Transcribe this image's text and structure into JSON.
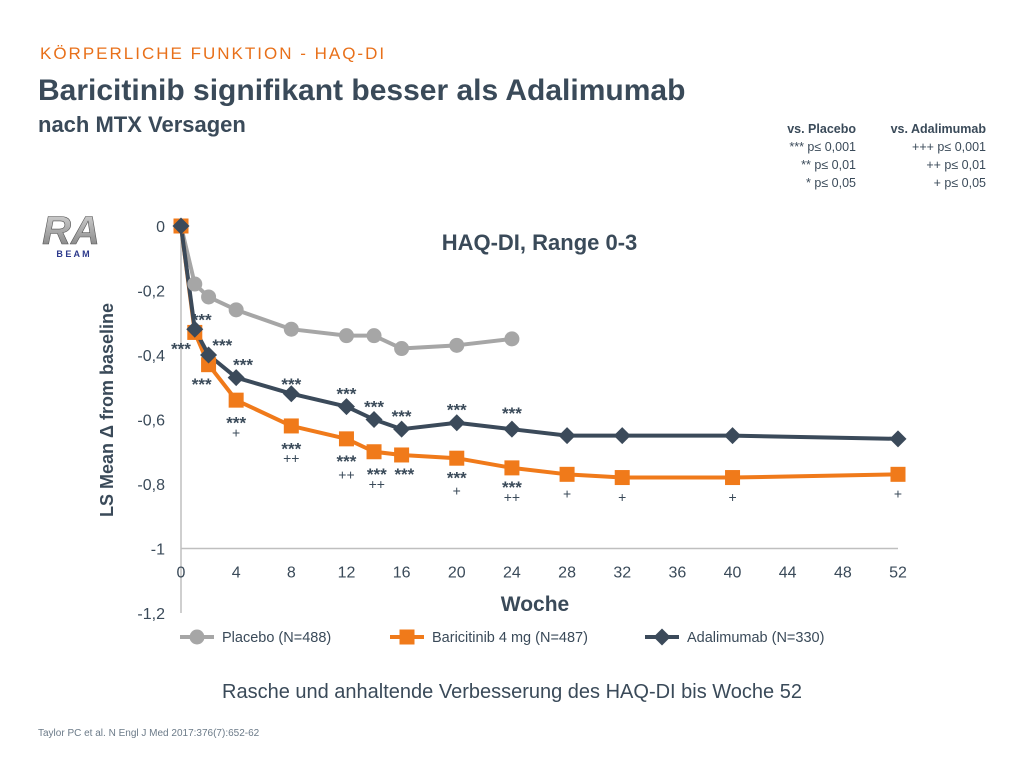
{
  "header": {
    "overline": "KÖRPERLICHE FUNKTION - HAQ-DI",
    "title": "Baricitinib signifikant besser als Adalimumab",
    "subtitle": "nach MTX Versagen"
  },
  "significance_legend": {
    "placebo": {
      "heading": "vs. Placebo",
      "lines": [
        "*** p≤ 0,001",
        "** p≤ 0,01",
        "* p≤ 0,05"
      ]
    },
    "adalimumab": {
      "heading": "vs. Adalimumab",
      "lines": [
        "+++ p≤ 0,001",
        "++ p≤ 0,01",
        "+ p≤ 0,05"
      ]
    }
  },
  "logo": {
    "name": "RA-BEAM",
    "text": "RA",
    "subtext": "B E A M"
  },
  "caption": "Rasche und anhaltende Verbesserung des HAQ-DI  bis Woche 52",
  "reference": "Taylor PC et al. N Engl J Med 2017:376(7):652-62",
  "colors": {
    "placebo": "#a6a6a6",
    "baricitinib": "#f07a1a",
    "adalimumab": "#3b4a5a",
    "accent": "#e8701a",
    "text": "#3a4a59"
  },
  "chart_data": {
    "type": "line",
    "title": "HAQ-DI, Range 0-3",
    "xlabel": "Woche",
    "ylabel": "LS Mean Δ from baseline",
    "xlim": [
      0,
      52
    ],
    "ylim": [
      -1.2,
      0
    ],
    "x_ticks": [
      "0",
      "4",
      "8",
      "12",
      "16",
      "20",
      "24",
      "28",
      "32",
      "36",
      "40",
      "44",
      "48",
      "52"
    ],
    "y_ticks": [
      "0",
      "-0,2",
      "-0,4",
      "-0,6",
      "-0,8",
      "-1",
      "-1,2"
    ],
    "grid": false,
    "legend_position": "bottom",
    "series": [
      {
        "name": "Placebo (N=488)",
        "color": "#a6a6a6",
        "marker": "circle",
        "x": [
          0,
          1,
          2,
          4,
          8,
          12,
          14,
          16,
          20,
          24
        ],
        "y": [
          0,
          -0.18,
          -0.22,
          -0.26,
          -0.32,
          -0.34,
          -0.34,
          -0.38,
          -0.37,
          -0.35
        ]
      },
      {
        "name": "Baricitinib 4 mg (N=487)",
        "color": "#f07a1a",
        "marker": "square",
        "x": [
          0,
          1,
          2,
          4,
          8,
          12,
          14,
          16,
          20,
          24,
          28,
          32,
          40,
          52
        ],
        "y": [
          0,
          -0.33,
          -0.43,
          -0.54,
          -0.62,
          -0.66,
          -0.7,
          -0.71,
          -0.72,
          -0.75,
          -0.77,
          -0.78,
          -0.78,
          -0.77
        ]
      },
      {
        "name": "Adalimumab (N=330)",
        "color": "#3b4a5a",
        "marker": "diamond",
        "x": [
          0,
          1,
          2,
          4,
          8,
          12,
          14,
          16,
          20,
          24,
          28,
          32,
          40,
          52
        ],
        "y": [
          0,
          -0.32,
          -0.4,
          -0.47,
          -0.52,
          -0.56,
          -0.6,
          -0.63,
          -0.61,
          -0.63,
          -0.65,
          -0.65,
          -0.65,
          -0.66
        ]
      }
    ],
    "annotations": [
      {
        "text": "***",
        "x": 1.5,
        "y": -0.28
      },
      {
        "text": "***",
        "x": 0,
        "y": -0.37
      },
      {
        "text": "***",
        "x": 3,
        "y": -0.36
      },
      {
        "text": "***",
        "x": 4.5,
        "y": -0.42
      },
      {
        "text": "***",
        "x": 1.5,
        "y": -0.48
      },
      {
        "text": "***",
        "x": 8,
        "y": -0.48
      },
      {
        "text": "***",
        "x": 12,
        "y": -0.51
      },
      {
        "text": "***",
        "x": 14,
        "y": -0.55
      },
      {
        "text": "***",
        "x": 16,
        "y": -0.58
      },
      {
        "text": "***",
        "x": 20,
        "y": -0.56
      },
      {
        "text": "***",
        "x": 24,
        "y": -0.57
      },
      {
        "text": "***",
        "x": 4,
        "y": -0.6
      },
      {
        "text": "+",
        "x": 4,
        "y": -0.64
      },
      {
        "text": "***",
        "x": 8,
        "y": -0.68
      },
      {
        "text": "++",
        "x": 8,
        "y": -0.72
      },
      {
        "text": "***",
        "x": 12,
        "y": -0.72
      },
      {
        "text": "++",
        "x": 12,
        "y": -0.77
      },
      {
        "text": "***",
        "x": 14.2,
        "y": -0.76
      },
      {
        "text": "++",
        "x": 14.2,
        "y": -0.8
      },
      {
        "text": "***",
        "x": 16.2,
        "y": -0.76
      },
      {
        "text": "***",
        "x": 20,
        "y": -0.77
      },
      {
        "text": "+",
        "x": 20,
        "y": -0.82
      },
      {
        "text": "***",
        "x": 24,
        "y": -0.8
      },
      {
        "text": "++",
        "x": 24,
        "y": -0.84
      },
      {
        "text": "+",
        "x": 28,
        "y": -0.83
      },
      {
        "text": "+",
        "x": 32,
        "y": -0.84
      },
      {
        "text": "+",
        "x": 40,
        "y": -0.84
      },
      {
        "text": "+",
        "x": 52,
        "y": -0.83
      }
    ]
  }
}
